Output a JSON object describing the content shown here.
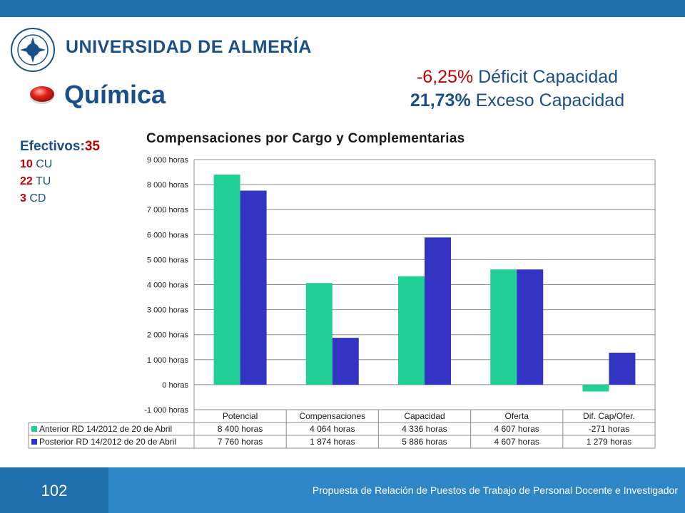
{
  "header": {
    "university": "UNIVERSIDAD DE ALMERÍA",
    "logo_icon": "university-seal-icon",
    "logo_seal_text": "UNIVERSITAS ALMERIENSIS"
  },
  "slide": {
    "title": "Química",
    "bullet_icon": "red-oval-bullet-icon",
    "deficit_value": "-6,25%",
    "deficit_label": " Déficit Capacidad",
    "excess_value": "21,73%",
    "excess_label": " Exceso Capacidad"
  },
  "efectivos": {
    "label": "Efectivos:",
    "total": "35",
    "rows": [
      {
        "count": "10",
        "code": " CU"
      },
      {
        "count": "22",
        "code": " TU"
      },
      {
        "count": "3",
        "code": " CD"
      }
    ]
  },
  "footer": {
    "page": "102",
    "text": "Propuesta de Relación de Puestos de Trabajo de Personal Docente e Investigador"
  },
  "colors": {
    "series1": "#1fcf95",
    "series2": "#3333c4",
    "brand_blue": "#1b4f8a",
    "accent_red": "#c00000",
    "bar_blue": "#2f86c7"
  },
  "chart_data": {
    "type": "bar",
    "title": "Compensaciones por Cargo y Complementarias",
    "categories": [
      "Potencial",
      "Compensaciones",
      "Capacidad",
      "Oferta",
      "Dif. Cap/Ofer."
    ],
    "series": [
      {
        "name": "Anterior RD 14/2012 de 20 de Abril",
        "values": [
          8400,
          4064,
          4336,
          4607,
          -271
        ],
        "labels": [
          "8 400 horas",
          "4 064 horas",
          "4 336 horas",
          "4 607 horas",
          "-271 horas"
        ]
      },
      {
        "name": "Posterior RD 14/2012 de 20 de Abril",
        "values": [
          7760,
          1874,
          5886,
          4607,
          1279
        ],
        "labels": [
          "7 760 horas",
          "1 874 horas",
          "5 886 horas",
          "4 607 horas",
          "1 279 horas"
        ]
      }
    ],
    "ylim": [
      -1000,
      9000
    ],
    "yticks": [
      9000,
      8000,
      7000,
      6000,
      5000,
      4000,
      3000,
      2000,
      1000,
      0,
      -1000
    ],
    "ytick_labels": [
      "9 000 horas",
      "8 000 horas",
      "7 000 horas",
      "6 000 horas",
      "5 000 horas",
      "4 000 horas",
      "3 000 horas",
      "2 000 horas",
      "1 000 horas",
      "0 horas",
      "-1 000 horas"
    ],
    "grid": true,
    "legend": "data-table-below"
  }
}
